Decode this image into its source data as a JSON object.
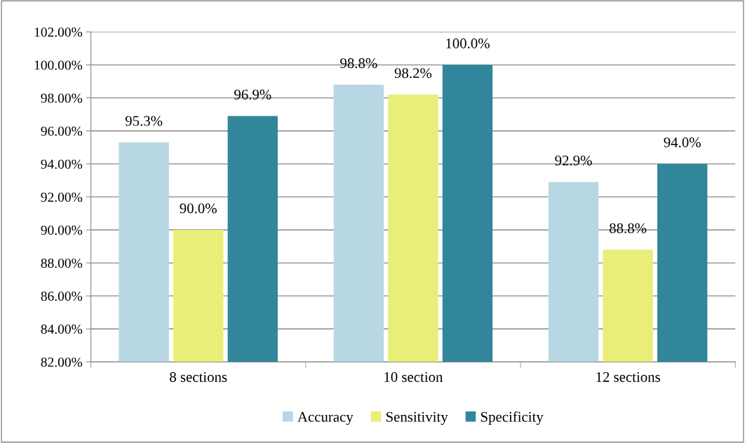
{
  "chart_data": {
    "type": "bar",
    "categories": [
      "8 sections",
      "10 section",
      "12 sections"
    ],
    "series": [
      {
        "name": "Accuracy",
        "color": "#b7d7e3",
        "values": [
          95.3,
          98.8,
          92.9
        ],
        "value_labels": [
          "95.3%",
          "98.8%",
          "92.9%"
        ]
      },
      {
        "name": "Sensitivity",
        "color": "#e9ee78",
        "values": [
          90.0,
          98.2,
          88.8
        ],
        "value_labels": [
          "90.0%",
          "98.2%",
          "88.8%"
        ]
      },
      {
        "name": "Specificity",
        "color": "#31869b",
        "values": [
          96.9,
          100.0,
          94.0
        ],
        "value_labels": [
          "96.9%",
          "100.0%",
          "94.0%"
        ]
      }
    ],
    "ylim": [
      82,
      102
    ],
    "yticks": [
      {
        "value": 82,
        "label": "82.00%"
      },
      {
        "value": 84,
        "label": "84.00%"
      },
      {
        "value": 86,
        "label": "86.00%"
      },
      {
        "value": 88,
        "label": "88.00%"
      },
      {
        "value": 90,
        "label": "90.00%"
      },
      {
        "value": 92,
        "label": "92.00%"
      },
      {
        "value": 94,
        "label": "94.00%"
      },
      {
        "value": 96,
        "label": "96.00%"
      },
      {
        "value": 98,
        "label": "98.00%"
      },
      {
        "value": 100,
        "label": "100.00%"
      },
      {
        "value": 102,
        "label": "102.00%"
      }
    ],
    "grid": "y",
    "legend": "bottom"
  }
}
